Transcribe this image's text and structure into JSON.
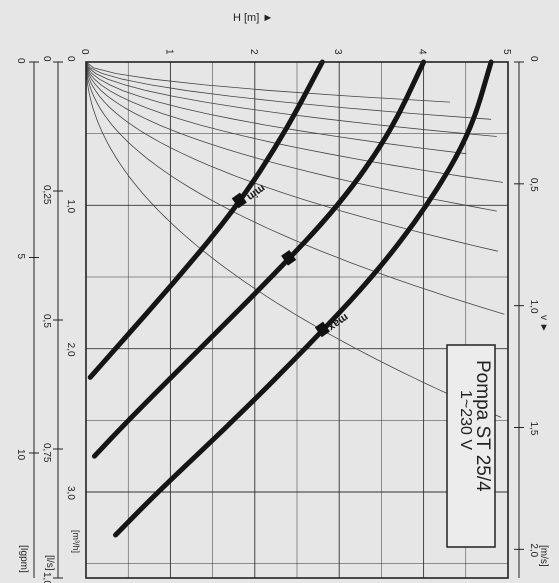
{
  "chart_data": {
    "type": "line",
    "title": "Pompa ST 25/4",
    "subtitle": "1~230 V",
    "ylabel": "H [m] ►",
    "xlabel": "",
    "ylim": [
      0,
      5
    ],
    "xlim": [
      0,
      3.6
    ],
    "y_ticks": [
      "0",
      "1",
      "2",
      "3",
      "4",
      "5"
    ],
    "x_ticks_m3h": [
      "0",
      "1,0",
      "2,0",
      "3,0"
    ],
    "velocity_label": "v ►",
    "velocity_unit": "[m/s]",
    "velocity_ticks": [
      "0",
      "0,5",
      "1,0",
      "1,5",
      "2,0"
    ],
    "flow_m3h_unit": "[m³/h]",
    "flow_ls_unit": "[l/s]",
    "flow_ls_ticks": [
      "0",
      "0,25",
      "0,5",
      "0,75",
      "1,0"
    ],
    "flow_gpm_unit": "[Igpm]",
    "flow_gpm_ticks": [
      "0",
      "5",
      "10"
    ],
    "series": [
      {
        "name": "max",
        "x": [
          0,
          0.5,
          1.0,
          1.5,
          2.0,
          2.5,
          3.0,
          3.3
        ],
        "values": [
          4.8,
          4.55,
          4.05,
          3.4,
          2.6,
          1.75,
          0.85,
          0.35
        ]
      },
      {
        "name": "",
        "x": [
          0,
          0.5,
          1.0,
          1.5,
          2.0,
          2.5,
          2.75
        ],
        "values": [
          4.0,
          3.6,
          3.0,
          2.2,
          1.35,
          0.5,
          0.1
        ]
      },
      {
        "name": "min",
        "x": [
          0,
          0.5,
          1.0,
          1.5,
          2.0,
          2.2
        ],
        "values": [
          2.8,
          2.35,
          1.8,
          1.1,
          0.35,
          0.05
        ]
      }
    ],
    "grid": true
  }
}
